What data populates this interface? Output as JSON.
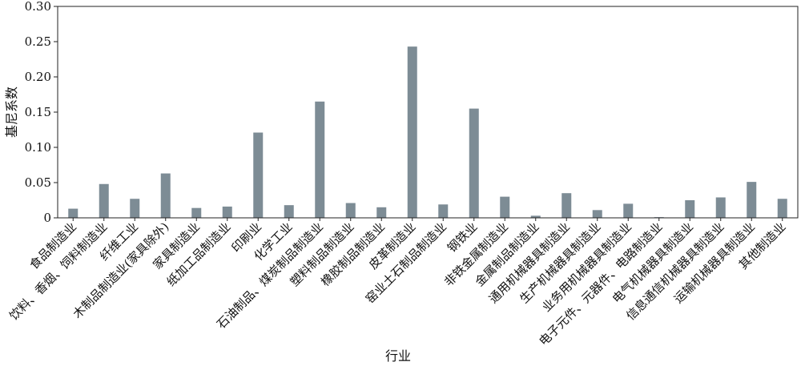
{
  "chart_data": {
    "type": "bar",
    "title": "",
    "xlabel": "行业",
    "ylabel": "基尼系数",
    "ylim": [
      0,
      0.3
    ],
    "yticks": [
      "0",
      "0.05",
      "0.10",
      "0.15",
      "0.20",
      "0.25",
      "0.30"
    ],
    "grid": false,
    "bar_color": "#7d8c95",
    "categories": [
      "食品制造业",
      "饮料、香烟、饲料制造业",
      "纤维工业",
      "木制品制造业(家具除外)",
      "家具制造业",
      "纸加工品制造业",
      "印刷业",
      "化学工业",
      "石油制品、煤炭制品制造业",
      "塑料制品制造业",
      "橡胶制品制造业",
      "皮革制造业",
      "窑业土石制品制造业",
      "钢铁业",
      "非铁金属制造业",
      "金属制品制造业",
      "通用机械器具制造业",
      "生产机械器具制造业",
      "业务用机械器具制造业",
      "电子元件、元器件、电路制造业",
      "电气机械器具制造业",
      "信息通信机械器具制造业",
      "运输机械器具制造业",
      "其他制造业"
    ],
    "values": [
      0.013,
      0.048,
      0.027,
      0.063,
      0.014,
      0.016,
      0.121,
      0.018,
      0.165,
      0.021,
      0.015,
      0.243,
      0.019,
      0.155,
      0.03,
      0.003,
      0.035,
      0.011,
      0.02,
      0.001,
      0.025,
      0.029,
      0.051,
      0.027
    ]
  }
}
